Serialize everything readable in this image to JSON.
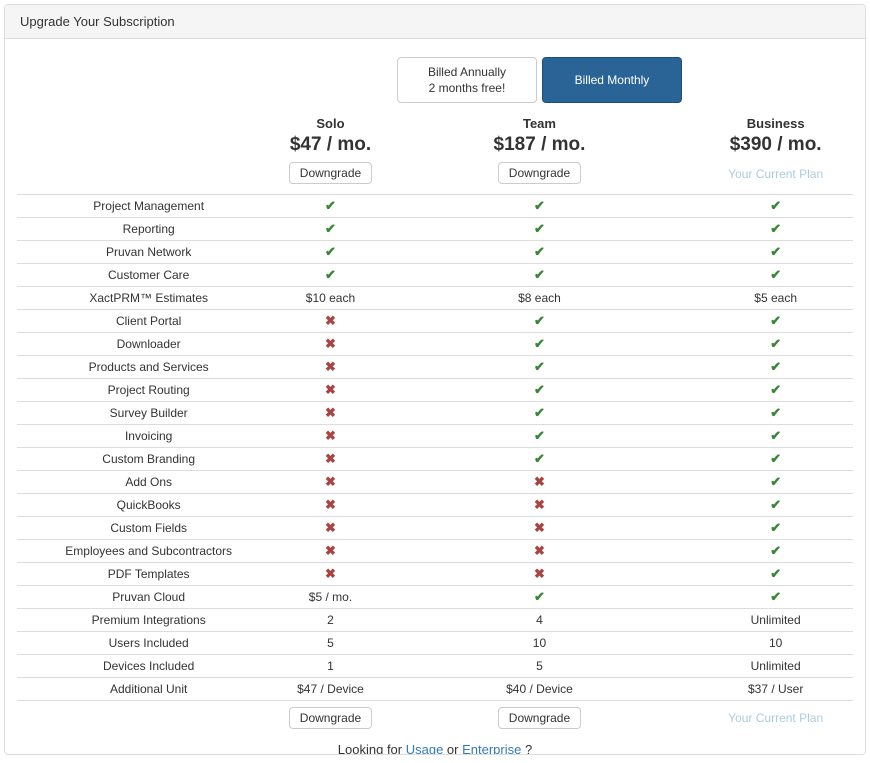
{
  "panel": {
    "title": "Upgrade Your Subscription"
  },
  "billing_toggle": {
    "annual_line1": "Billed Annually",
    "annual_line2": "2 months free!",
    "monthly_label": "Billed Monthly",
    "active": "monthly"
  },
  "plans": [
    {
      "name": "Solo",
      "price": "$47 / mo.",
      "action": "Downgrade",
      "action_type": "button"
    },
    {
      "name": "Team",
      "price": "$187 / mo.",
      "action": "Downgrade",
      "action_type": "button"
    },
    {
      "name": "Business",
      "price": "$390 / mo.",
      "action": "Your Current Plan",
      "action_type": "current"
    }
  ],
  "features": [
    {
      "label": "Project Management",
      "solo": "check",
      "team": "check",
      "business": "check"
    },
    {
      "label": "Reporting",
      "solo": "check",
      "team": "check",
      "business": "check"
    },
    {
      "label": "Pruvan Network",
      "solo": "check",
      "team": "check",
      "business": "check"
    },
    {
      "label": "Customer Care",
      "solo": "check",
      "team": "check",
      "business": "check"
    },
    {
      "label": "XactPRM™ Estimates",
      "solo": "$10 each",
      "team": "$8 each",
      "business": "$5 each"
    },
    {
      "label": "Client Portal",
      "solo": "cross",
      "team": "check",
      "business": "check"
    },
    {
      "label": "Downloader",
      "solo": "cross",
      "team": "check",
      "business": "check"
    },
    {
      "label": "Products and Services",
      "solo": "cross",
      "team": "check",
      "business": "check"
    },
    {
      "label": "Project Routing",
      "solo": "cross",
      "team": "check",
      "business": "check"
    },
    {
      "label": "Survey Builder",
      "solo": "cross",
      "team": "check",
      "business": "check"
    },
    {
      "label": "Invoicing",
      "solo": "cross",
      "team": "check",
      "business": "check"
    },
    {
      "label": "Custom Branding",
      "solo": "cross",
      "team": "check",
      "business": "check"
    },
    {
      "label": "Add Ons",
      "solo": "cross",
      "team": "cross",
      "business": "check"
    },
    {
      "label": "QuickBooks",
      "solo": "cross",
      "team": "cross",
      "business": "check"
    },
    {
      "label": "Custom Fields",
      "solo": "cross",
      "team": "cross",
      "business": "check"
    },
    {
      "label": "Employees and Subcontractors",
      "solo": "cross",
      "team": "cross",
      "business": "check"
    },
    {
      "label": "PDF Templates",
      "solo": "cross",
      "team": "cross",
      "business": "check"
    },
    {
      "label": "Pruvan Cloud",
      "solo": "$5 / mo.",
      "team": "check",
      "business": "check"
    },
    {
      "label": "Premium Integrations",
      "solo": "2",
      "team": "4",
      "business": "Unlimited"
    },
    {
      "label": "Users Included",
      "solo": "5",
      "team": "10",
      "business": "10"
    },
    {
      "label": "Devices Included",
      "solo": "1",
      "team": "5",
      "business": "Unlimited"
    },
    {
      "label": "Additional Unit",
      "solo": "$47 / Device",
      "team": "$40 / Device",
      "business": "$37 / User"
    }
  ],
  "marks": {
    "check_glyph": "✔",
    "cross_glyph": "✖"
  },
  "footer": {
    "prefix": "Looking for ",
    "usage_link": "Usage",
    "middle": " or ",
    "enterprise_link": "Enterprise",
    "suffix": " ?"
  },
  "colors": {
    "check": "#3a873a",
    "cross": "#a94442",
    "toggle_active": "#2a6496",
    "current_plan": "#a9cce3",
    "link": "#337ab7",
    "border": "#dddddd"
  }
}
